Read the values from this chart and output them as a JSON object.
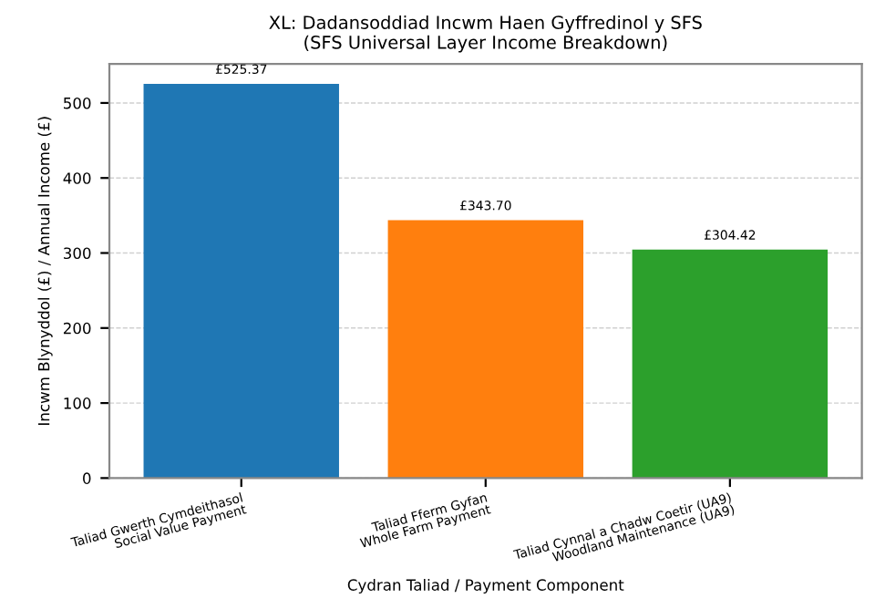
{
  "chart_data": {
    "type": "bar",
    "title": "XL: Dadansoddiad Incwm Haen Gyffredinol y SFS\n(SFS Universal Layer Income Breakdown)",
    "xlabel": "Cydran Taliad / Payment Component",
    "ylabel": "Incwm Blynyddol (£) / Annual Income (£)",
    "categories": [
      "Taliad Gwerth Cymdeithasol\nSocial Value Payment",
      "Taliad Fferm Gyfan\nWhole Farm Payment",
      "Taliad Cynnal a Chadw Coetir (UA9)\nWoodland Maintenance (UA9)"
    ],
    "values": [
      525.37,
      343.7,
      304.42
    ],
    "colors": [
      "#1f77b4",
      "#ff7f0e",
      "#2ca02c"
    ],
    "value_labels": [
      "£525.37",
      "£343.70",
      "£304.42"
    ],
    "ylim": [
      0,
      552
    ],
    "yticks": [
      0,
      100,
      200,
      300,
      400,
      500
    ],
    "grid": "y"
  }
}
